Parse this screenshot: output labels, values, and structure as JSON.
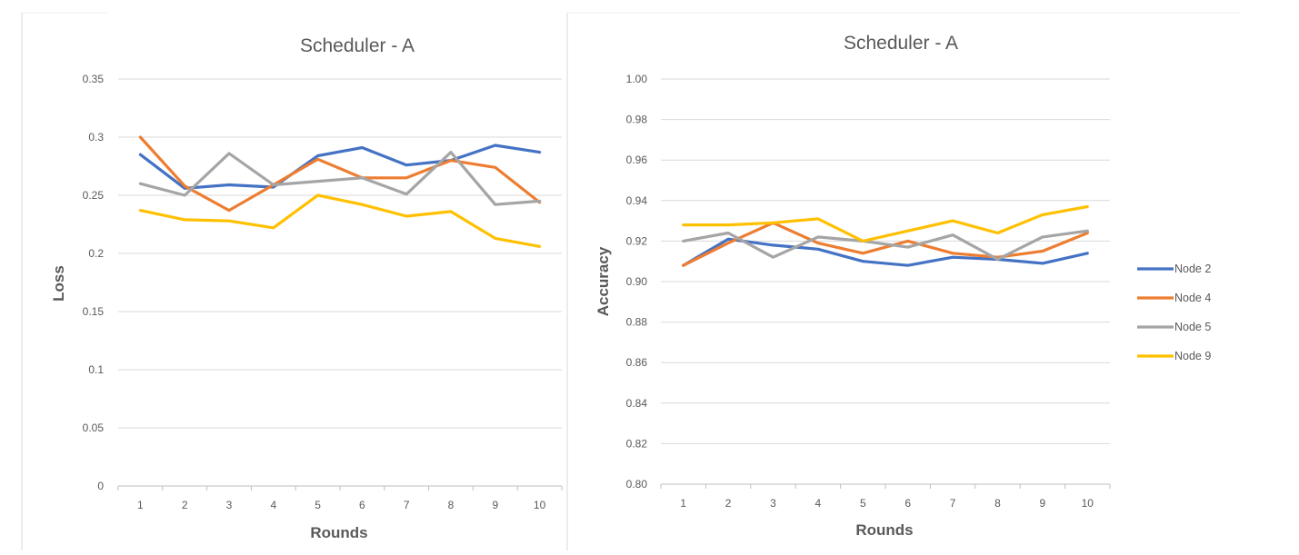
{
  "chart_data": [
    {
      "type": "line",
      "title": "Scheduler - A",
      "xlabel": "Rounds",
      "ylabel": "Loss",
      "categories": [
        "1",
        "2",
        "3",
        "4",
        "5",
        "6",
        "7",
        "8",
        "9",
        "10"
      ],
      "ylim": [
        0,
        0.35
      ],
      "yticks": [
        "0",
        "0.05",
        "0.1",
        "0.15",
        "0.2",
        "0.25",
        "0.3",
        "0.35"
      ],
      "grid": true,
      "legend": "none",
      "series": [
        {
          "name": "Node 2",
          "color": "#4472C4",
          "values": [
            0.285,
            0.256,
            0.259,
            0.257,
            0.284,
            0.291,
            0.276,
            0.28,
            0.293,
            0.287
          ]
        },
        {
          "name": "Node 4",
          "color": "#ED7D31",
          "values": [
            0.3,
            0.258,
            0.237,
            0.259,
            0.281,
            0.265,
            0.265,
            0.28,
            0.274,
            0.244
          ]
        },
        {
          "name": "Node 5",
          "color": "#A5A5A5",
          "values": [
            0.26,
            0.25,
            0.286,
            0.259,
            0.262,
            0.265,
            0.251,
            0.287,
            0.242,
            0.245
          ]
        },
        {
          "name": "Node 9",
          "color": "#FFC000",
          "values": [
            0.237,
            0.229,
            0.228,
            0.222,
            0.25,
            0.242,
            0.232,
            0.236,
            0.213,
            0.206
          ]
        }
      ]
    },
    {
      "type": "line",
      "title": "Scheduler - A",
      "xlabel": "Rounds",
      "ylabel": "Accuracy",
      "categories": [
        "1",
        "2",
        "3",
        "4",
        "5",
        "6",
        "7",
        "8",
        "9",
        "10"
      ],
      "ylim": [
        0.8,
        1.0
      ],
      "yticks": [
        "0.80",
        "0.82",
        "0.84",
        "0.86",
        "0.88",
        "0.90",
        "0.92",
        "0.94",
        "0.96",
        "0.98",
        "1.00"
      ],
      "grid": true,
      "legend": "right",
      "series": [
        {
          "name": "Node 2",
          "color": "#4472C4",
          "values": [
            0.908,
            0.921,
            0.918,
            0.916,
            0.91,
            0.908,
            0.912,
            0.911,
            0.909,
            0.914
          ]
        },
        {
          "name": "Node 4",
          "color": "#ED7D31",
          "values": [
            0.908,
            0.919,
            0.929,
            0.919,
            0.914,
            0.92,
            0.914,
            0.912,
            0.915,
            0.924
          ]
        },
        {
          "name": "Node 5",
          "color": "#A5A5A5",
          "values": [
            0.92,
            0.924,
            0.912,
            0.922,
            0.92,
            0.917,
            0.923,
            0.911,
            0.922,
            0.925
          ]
        },
        {
          "name": "Node 9",
          "color": "#FFC000",
          "values": [
            0.928,
            0.928,
            0.929,
            0.931,
            0.92,
            0.925,
            0.93,
            0.924,
            0.933,
            0.937
          ]
        }
      ]
    }
  ]
}
